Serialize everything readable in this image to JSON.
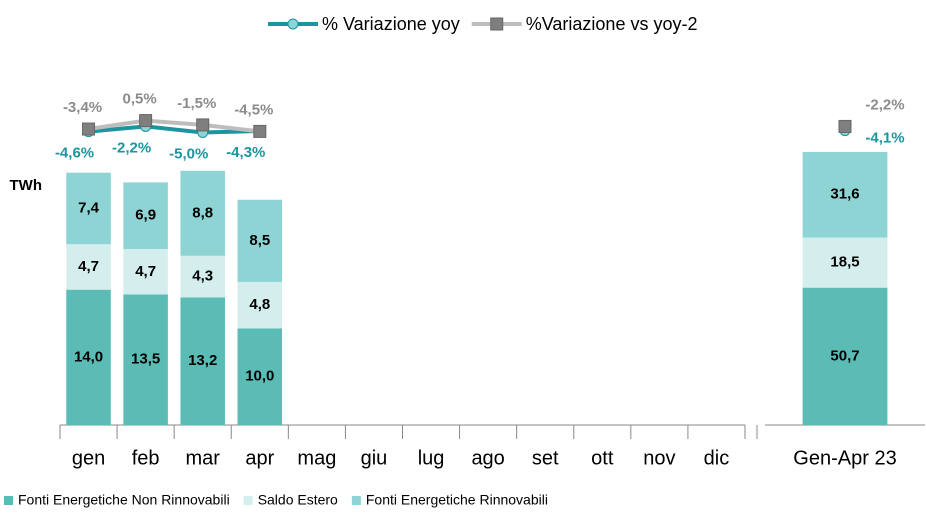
{
  "chart_data": [
    {
      "type": "bar",
      "stacked": true,
      "ylabel": "TWh",
      "categories": [
        "gen",
        "feb",
        "mar",
        "apr",
        "mag",
        "giu",
        "lug",
        "ago",
        "set",
        "ott",
        "nov",
        "dic"
      ],
      "ylim": [
        0,
        30
      ],
      "y2lim": [
        -140,
        10
      ],
      "series": [
        {
          "name": "Fonti Energetiche Non Rinnovabili",
          "color": "#5bbcb6",
          "values": [
            14.0,
            13.5,
            13.2,
            10.0,
            null,
            null,
            null,
            null,
            null,
            null,
            null,
            null
          ],
          "value_labels": [
            "14,0",
            "13,5",
            "13,2",
            "10,0",
            null,
            null,
            null,
            null,
            null,
            null,
            null,
            null
          ]
        },
        {
          "name": "Saldo Estero",
          "color": "#d4eeee",
          "values": [
            4.7,
            4.7,
            4.3,
            4.8,
            null,
            null,
            null,
            null,
            null,
            null,
            null,
            null
          ],
          "value_labels": [
            "4,7",
            "4,7",
            "4,3",
            "4,8",
            null,
            null,
            null,
            null,
            null,
            null,
            null,
            null
          ]
        },
        {
          "name": "Fonti Energetiche Rinnovabili",
          "color": "#8fd4d4",
          "values": [
            7.4,
            6.9,
            8.8,
            8.5,
            null,
            null,
            null,
            null,
            null,
            null,
            null,
            null
          ],
          "value_labels": [
            "7,4",
            "6,9",
            "8,8",
            "8,5",
            null,
            null,
            null,
            null,
            null,
            null,
            null,
            null
          ]
        },
        {
          "name": "% Variazione yoy",
          "type": "line",
          "axis": "y2",
          "color": "#1b95a0",
          "marker": "circle",
          "marker_color": "#8fd4d4",
          "values": [
            -4.6,
            -2.2,
            -5.0,
            -4.3,
            null,
            null,
            null,
            null,
            null,
            null,
            null,
            null
          ],
          "value_labels": [
            "-4,6%",
            "-2,2%",
            "-5,0%",
            "-4,3%",
            null,
            null,
            null,
            null,
            null,
            null,
            null,
            null
          ]
        },
        {
          "name": "%Variazione vs yoy-2",
          "type": "line",
          "axis": "y2",
          "color": "#bdbdbd",
          "marker": "square",
          "marker_color": "#7f7f7f",
          "values": [
            -3.4,
            0.5,
            -1.5,
            -4.5,
            null,
            null,
            null,
            null,
            null,
            null,
            null,
            null
          ],
          "value_labels": [
            "-3,4%",
            "0,5%",
            "-1,5%",
            "-4,5%",
            null,
            null,
            null,
            null,
            null,
            null,
            null,
            null
          ]
        }
      ]
    },
    {
      "type": "bar",
      "stacked": true,
      "categories": [
        "Gen-Apr 23"
      ],
      "ylim": [
        0,
        110
      ],
      "y2lim": [
        -140,
        10
      ],
      "series": [
        {
          "color": "#5bbcb6",
          "values": [
            50.7
          ],
          "value_labels": [
            "50,7"
          ]
        },
        {
          "color": "#d4eeee",
          "values": [
            18.5
          ],
          "value_labels": [
            "18,5"
          ]
        },
        {
          "color": "#8fd4d4",
          "values": [
            31.6
          ],
          "value_labels": [
            "31,6"
          ]
        },
        {
          "type": "line",
          "axis": "y2",
          "color": "#1b95a0",
          "marker": "circle",
          "marker_color": "#8fd4d4",
          "values": [
            -4.1
          ],
          "value_labels": [
            "-4,1%"
          ]
        },
        {
          "type": "line",
          "axis": "y2",
          "color": "#bdbdbd",
          "marker": "square",
          "marker_color": "#7f7f7f",
          "values": [
            -2.2
          ],
          "value_labels": [
            "-2,2%"
          ]
        }
      ]
    }
  ]
}
